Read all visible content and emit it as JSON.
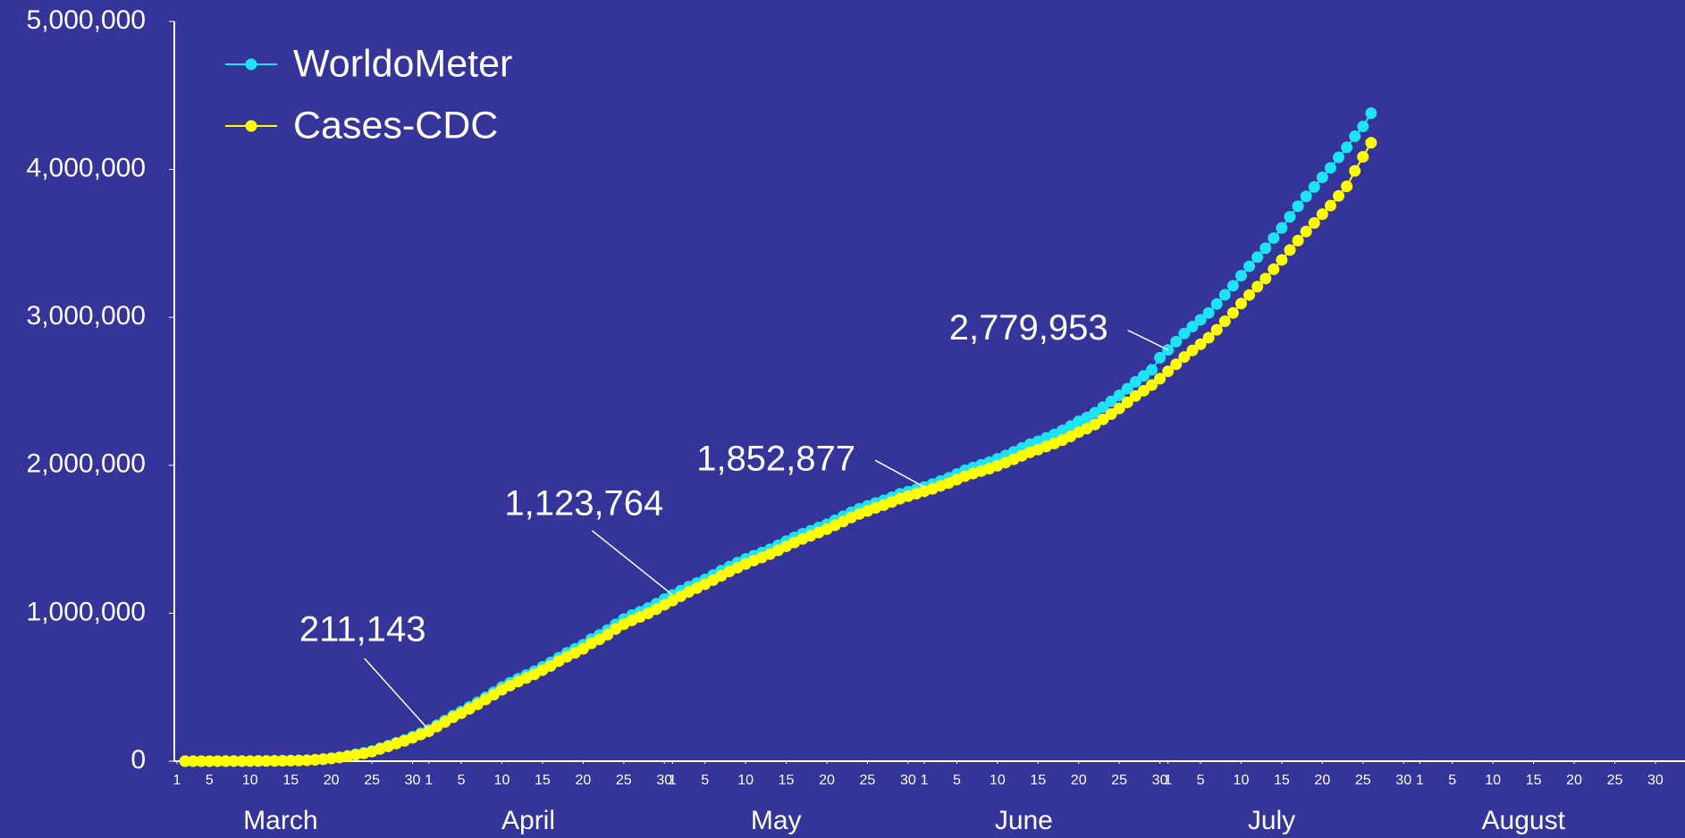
{
  "chart_data": {
    "type": "line",
    "legend": "upper left",
    "xlim": [
      1,
      184
    ],
    "ylim": [
      0,
      5000000
    ],
    "yticks": [
      {
        "value": 0,
        "label": "0"
      },
      {
        "value": 1000000,
        "label": "1,000,000"
      },
      {
        "value": 2000000,
        "label": "2,000,000"
      },
      {
        "value": 3000000,
        "label": "3,000,000"
      },
      {
        "value": 4000000,
        "label": "4,000,000"
      },
      {
        "value": 5000000,
        "label": "5,000,000"
      }
    ],
    "xticks": [
      1,
      5,
      10,
      15,
      20,
      25,
      30,
      {
        "value": 32,
        "label": "1"
      },
      {
        "value": 36,
        "label": "5"
      },
      {
        "value": 41,
        "label": "10"
      },
      {
        "value": 46,
        "label": "15"
      },
      {
        "value": 51,
        "label": "20"
      },
      {
        "value": 56,
        "label": "25"
      },
      {
        "value": 61,
        "label": "30"
      },
      {
        "value": 62,
        "label": "1"
      },
      {
        "value": 66,
        "label": "5"
      },
      {
        "value": 71,
        "label": "10"
      },
      {
        "value": 76,
        "label": "15"
      },
      {
        "value": 81,
        "label": "20"
      },
      {
        "value": 86,
        "label": "25"
      },
      {
        "value": 91,
        "label": "30"
      },
      {
        "value": 93,
        "label": "1"
      },
      {
        "value": 97,
        "label": "5"
      },
      {
        "value": 102,
        "label": "10"
      },
      {
        "value": 107,
        "label": "15"
      },
      {
        "value": 112,
        "label": "20"
      },
      {
        "value": 117,
        "label": "25"
      },
      {
        "value": 122,
        "label": "30"
      },
      {
        "value": 123,
        "label": "1"
      },
      {
        "value": 127,
        "label": "5"
      },
      {
        "value": 132,
        "label": "10"
      },
      {
        "value": 137,
        "label": "15"
      },
      {
        "value": 142,
        "label": "20"
      },
      {
        "value": 147,
        "label": "25"
      },
      {
        "value": 152,
        "label": "30"
      },
      {
        "value": 154,
        "label": "1"
      },
      {
        "value": 158,
        "label": "5"
      },
      {
        "value": 163,
        "label": "10"
      },
      {
        "value": 168,
        "label": "15"
      },
      {
        "value": 173,
        "label": "20"
      },
      {
        "value": 178,
        "label": "25"
      },
      {
        "value": 183,
        "label": "30"
      }
    ],
    "months": [
      {
        "value": 1,
        "label": "March"
      },
      {
        "value": 32,
        "label": "April"
      },
      {
        "value": 62,
        "label": "May"
      },
      {
        "value": 93,
        "label": "June"
      },
      {
        "value": 123,
        "label": "July"
      },
      {
        "value": 154,
        "label": "August"
      }
    ],
    "x": [
      2,
      3,
      4,
      5,
      6,
      7,
      8,
      9,
      10,
      11,
      12,
      13,
      14,
      15,
      16,
      17,
      18,
      19,
      20,
      21,
      22,
      23,
      24,
      25,
      26,
      27,
      28,
      29,
      30,
      31,
      32,
      33,
      34,
      35,
      36,
      37,
      38,
      39,
      40,
      41,
      42,
      43,
      44,
      45,
      46,
      47,
      48,
      49,
      50,
      51,
      52,
      53,
      54,
      55,
      56,
      57,
      58,
      59,
      60,
      61,
      62,
      63,
      64,
      65,
      66,
      67,
      68,
      69,
      70,
      71,
      72,
      73,
      74,
      75,
      76,
      77,
      78,
      79,
      80,
      81,
      82,
      83,
      84,
      85,
      86,
      87,
      88,
      89,
      90,
      91,
      92,
      93,
      94,
      95,
      96,
      97,
      98,
      99,
      100,
      101,
      102,
      103,
      104,
      105,
      106,
      107,
      108,
      109,
      110,
      111,
      112,
      113,
      114,
      115,
      116,
      117,
      118,
      119,
      120,
      121,
      122,
      123,
      124,
      125,
      126,
      127,
      128,
      129,
      130,
      131,
      132,
      133,
      134,
      135,
      136,
      137,
      138,
      139,
      140,
      141,
      142,
      143,
      144,
      145,
      146,
      147,
      148
    ],
    "series": [
      {
        "name": "WorldoMeter",
        "color": "#1ee3f5",
        "values": [
          100,
          125,
          160,
          220,
          320,
          440,
          540,
          710,
          990,
          1300,
          1700,
          2200,
          2900,
          3600,
          4600,
          6400,
          9300,
          14000,
          19600,
          26700,
          35200,
          46400,
          56000,
          68500,
          86600,
          105000,
          124600,
          143000,
          165000,
          188000,
          211143,
          243000,
          275000,
          308000,
          336000,
          367000,
          398000,
          432000,
          466000,
          501000,
          530000,
          557000,
          582000,
          608000,
          637000,
          667000,
          700000,
          732000,
          759000,
          787000,
          825000,
          853000,
          886000,
          925000,
          960000,
          987000,
          1010000,
          1035000,
          1064000,
          1095000,
          1123764,
          1153000,
          1180000,
          1204000,
          1229000,
          1258000,
          1288000,
          1316000,
          1342000,
          1367000,
          1389000,
          1410000,
          1432000,
          1459000,
          1487000,
          1513000,
          1537000,
          1557000,
          1580000,
          1601000,
          1628000,
          1655000,
          1682000,
          1706000,
          1725000,
          1745000,
          1763000,
          1784000,
          1807000,
          1822000,
          1837000,
          1852877,
          1873000,
          1894000,
          1915000,
          1941000,
          1966000,
          1985000,
          2003000,
          2021000,
          2043000,
          2066000,
          2091000,
          2117000,
          2142000,
          2162000,
          2185000,
          2209000,
          2236000,
          2265000,
          2297000,
          2323000,
          2355000,
          2393000,
          2432000,
          2473000,
          2518000,
          2564000,
          2604000,
          2645000,
          2727000,
          2779953,
          2836000,
          2891000,
          2937000,
          2983000,
          3030000,
          3090000,
          3152000,
          3213000,
          3282000,
          3345000,
          3407000,
          3467000,
          3536000,
          3604000,
          3680000,
          3751000,
          3817000,
          3881000,
          3946000,
          4010000,
          4081000,
          4149000,
          4224000,
          4290000,
          4380000
        ]
      },
      {
        "name": "Cases-CDC",
        "color": "#ffff00",
        "values": [
          90,
          110,
          150,
          200,
          290,
          400,
          500,
          650,
          900,
          1200,
          1600,
          2100,
          2700,
          3400,
          4300,
          6000,
          8800,
          13000,
          18500,
          25000,
          33000,
          44000,
          53000,
          65000,
          82000,
          100000,
          119000,
          137000,
          158000,
          180000,
          202000,
          234000,
          265000,
          297000,
          324000,
          354000,
          384000,
          417000,
          450000,
          483000,
          511000,
          538000,
          562000,
          587000,
          615000,
          644000,
          676000,
          706000,
          732000,
          760000,
          796000,
          823000,
          855000,
          893000,
          926000,
          952000,
          975000,
          999000,
          1027000,
          1057000,
          1085000,
          1115000,
          1144000,
          1170000,
          1196000,
          1224000,
          1253000,
          1282000,
          1308000,
          1333000,
          1356000,
          1377000,
          1399000,
          1425000,
          1452000,
          1478000,
          1502000,
          1523000,
          1546000,
          1568000,
          1594000,
          1620000,
          1647000,
          1671000,
          1691000,
          1712000,
          1731000,
          1752000,
          1774000,
          1791000,
          1808000,
          1824000,
          1841000,
          1861000,
          1880000,
          1903000,
          1926000,
          1944000,
          1961000,
          1977000,
          1997000,
          2018000,
          2040000,
          2064000,
          2088000,
          2106000,
          2127000,
          2147000,
          2170000,
          2195000,
          2224000,
          2248000,
          2276000,
          2310000,
          2346000,
          2384000,
          2425000,
          2468000,
          2504000,
          2542000,
          2585000,
          2635000,
          2683000,
          2732000,
          2776000,
          2818000,
          2862000,
          2916000,
          2973000,
          3030000,
          3093000,
          3151000,
          3207000,
          3262000,
          3325000,
          3388000,
          3455000,
          3519000,
          3580000,
          3638000,
          3697000,
          3755000,
          3821000,
          3885000,
          3990000,
          4085000,
          4180000
        ]
      }
    ],
    "annotations": [
      {
        "text": "211,143",
        "x": 32,
        "y": 211143
      },
      {
        "text": "1,123,764",
        "x": 62,
        "y": 1123764
      },
      {
        "text": "1,852,877",
        "x": 93,
        "y": 1852877
      },
      {
        "text": "2,779,953",
        "x": 123,
        "y": 2779953
      }
    ]
  }
}
